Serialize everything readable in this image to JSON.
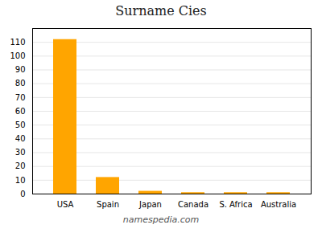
{
  "chart_data": {
    "type": "bar",
    "title": "Surname Cies",
    "categories": [
      "USA",
      "Spain",
      "Japan",
      "Canada",
      "S. Africa",
      "Australia"
    ],
    "values": [
      112,
      12,
      2,
      1,
      1,
      1
    ],
    "color": "#FFA500",
    "ylim": [
      0,
      120
    ],
    "yticks": [
      0,
      10,
      20,
      30,
      40,
      50,
      60,
      70,
      80,
      90,
      100,
      110
    ],
    "grid": true,
    "caption": "namespedia.com"
  }
}
